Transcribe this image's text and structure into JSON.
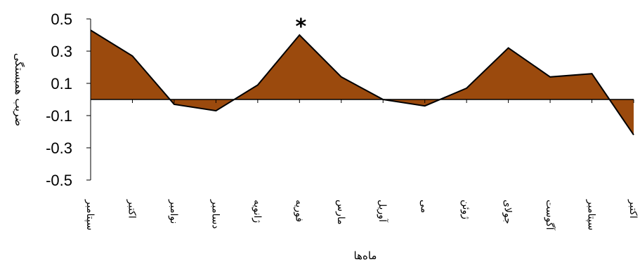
{
  "chart_data": {
    "type": "area",
    "categories": [
      "سپتامبر",
      "اکتبر",
      "نوامبر",
      "دسامبر",
      "ژانویه",
      "فوریه",
      "مارس",
      "آوریل",
      "می",
      "ژوئن",
      "جولای",
      "آگوست",
      "سپتامبر",
      "اکتبر"
    ],
    "values": [
      0.43,
      0.27,
      -0.03,
      -0.07,
      0.09,
      0.4,
      0.14,
      0.0,
      -0.04,
      0.07,
      0.32,
      0.14,
      0.16,
      -0.22
    ],
    "xlabel": "ماه‌ها",
    "ylabel": "ضریب همبستگی",
    "ylim": [
      -0.5,
      0.5
    ],
    "yticks": [
      "0.5",
      "0.3",
      "0.1",
      "-0.1",
      "-0.3",
      "-0.5"
    ],
    "ytick_values": [
      0.5,
      0.3,
      0.1,
      -0.1,
      -0.3,
      -0.5
    ],
    "annotations": [
      {
        "category_index": 5,
        "text": "*"
      }
    ],
    "fill_color": "#9b4a0d",
    "line_color": "#000000",
    "grid": false
  }
}
